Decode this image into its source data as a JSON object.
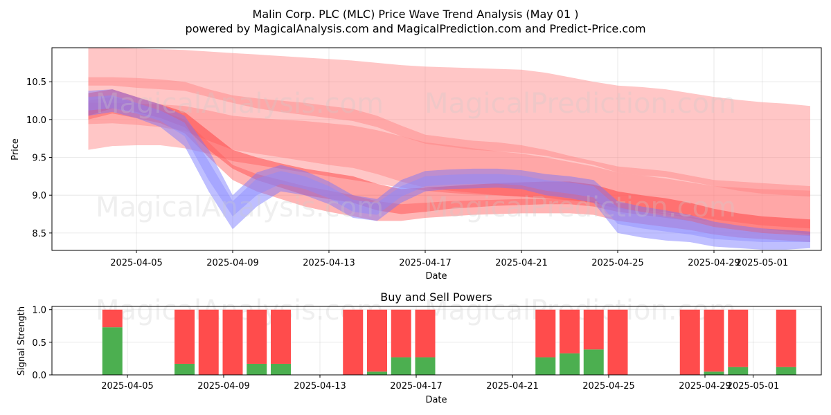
{
  "chart_data": [
    {
      "type": "area",
      "title": "Malin Corp. PLC (MLC) Price Wave Trend Analysis (May 01 )",
      "subtitle": "powered by MagicalAnalysis.com and MagicalPrediction.com and Predict-Price.com",
      "xlabel": "Date",
      "ylabel": "Price",
      "x_tick_labels": [
        "2025-04-05",
        "2025-04-09",
        "2025-04-13",
        "2025-04-17",
        "2025-04-21",
        "2025-04-25",
        "2025-04-29",
        "2025-05-01"
      ],
      "y_ticks": [
        8.5,
        9.0,
        9.5,
        10.0,
        10.5
      ],
      "ylim": [
        8.27,
        10.95
      ],
      "x_dates": [
        "2025-04-03",
        "2025-04-04",
        "2025-04-05",
        "2025-04-06",
        "2025-04-07",
        "2025-04-08",
        "2025-04-09",
        "2025-04-10",
        "2025-04-11",
        "2025-04-12",
        "2025-04-13",
        "2025-04-14",
        "2025-04-15",
        "2025-04-16",
        "2025-04-17",
        "2025-04-18",
        "2025-04-19",
        "2025-04-20",
        "2025-04-21",
        "2025-04-22",
        "2025-04-23",
        "2025-04-24",
        "2025-04-25",
        "2025-04-26",
        "2025-04-27",
        "2025-04-28",
        "2025-04-29",
        "2025-04-30",
        "2025-05-01",
        "2025-05-02",
        "2025-05-03"
      ],
      "grid": true,
      "series": [
        {
          "color": "#ff8080",
          "lower": [
            10.45,
            10.45,
            10.42,
            10.4,
            10.38,
            10.3,
            10.22,
            10.15,
            10.1,
            10.06,
            10.02,
            9.98,
            9.9,
            9.78,
            9.68,
            9.64,
            9.6,
            9.58,
            9.56,
            9.52,
            9.46,
            9.4,
            9.3,
            9.26,
            9.24,
            9.18,
            9.12,
            9.06,
            9.02,
            9.0,
            8.98
          ],
          "upper": [
            10.95,
            10.95,
            10.94,
            10.93,
            10.92,
            10.9,
            10.88,
            10.86,
            10.84,
            10.82,
            10.8,
            10.78,
            10.75,
            10.72,
            10.7,
            10.69,
            10.68,
            10.67,
            10.66,
            10.62,
            10.56,
            10.5,
            10.45,
            10.43,
            10.4,
            10.35,
            10.3,
            10.26,
            10.23,
            10.21,
            10.18
          ]
        },
        {
          "color": "#ff8080",
          "lower": [
            9.6,
            9.65,
            9.66,
            9.66,
            9.62,
            9.55,
            9.45,
            9.4,
            9.35,
            9.3,
            9.25,
            9.2,
            9.15,
            9.1,
            9.06,
            9.03,
            9.01,
            9.0,
            8.98,
            8.96,
            8.94,
            8.9,
            8.84,
            8.8,
            8.77,
            8.73,
            8.68,
            8.64,
            8.6,
            8.58,
            8.56
          ],
          "upper": [
            10.56,
            10.56,
            10.55,
            10.53,
            10.5,
            10.4,
            10.32,
            10.28,
            10.25,
            10.22,
            10.18,
            10.14,
            10.05,
            9.92,
            9.8,
            9.76,
            9.72,
            9.7,
            9.66,
            9.6,
            9.52,
            9.45,
            9.38,
            9.35,
            9.32,
            9.26,
            9.2,
            9.18,
            9.16,
            9.14,
            9.12
          ]
        },
        {
          "color": "#ff8080",
          "lower": [
            9.94,
            9.95,
            9.93,
            9.9,
            9.85,
            9.72,
            9.6,
            9.55,
            9.5,
            9.45,
            9.4,
            9.36,
            9.28,
            9.18,
            9.1,
            9.06,
            9.03,
            9.0,
            8.98,
            8.96,
            8.93,
            8.9,
            8.82,
            8.78,
            8.75,
            8.7,
            8.64,
            8.6,
            8.56,
            8.52,
            8.48
          ],
          "upper": [
            10.22,
            10.22,
            10.21,
            10.2,
            10.18,
            10.12,
            10.05,
            10.02,
            10.0,
            9.98,
            9.95,
            9.92,
            9.86,
            9.78,
            9.7,
            9.66,
            9.62,
            9.58,
            9.55,
            9.5,
            9.44,
            9.38,
            9.3,
            9.26,
            9.22,
            9.17,
            9.12,
            9.1,
            9.08,
            9.07,
            9.06
          ]
        },
        {
          "color": "#ff3030",
          "lower": [
            10.05,
            10.15,
            10.1,
            10.02,
            9.9,
            9.6,
            9.35,
            9.2,
            9.1,
            9.0,
            8.95,
            8.9,
            8.8,
            8.75,
            8.78,
            8.82,
            8.84,
            8.86,
            8.87,
            8.88,
            8.88,
            8.85,
            8.78,
            8.74,
            8.7,
            8.66,
            8.58,
            8.54,
            8.5,
            8.48,
            8.46
          ],
          "upper": [
            10.35,
            10.4,
            10.3,
            10.2,
            10.1,
            9.85,
            9.6,
            9.5,
            9.42,
            9.35,
            9.3,
            9.25,
            9.15,
            9.08,
            9.1,
            9.12,
            9.14,
            9.16,
            9.17,
            9.18,
            9.18,
            9.14,
            9.05,
            9.0,
            8.96,
            8.9,
            8.82,
            8.76,
            8.72,
            8.7,
            8.68
          ]
        },
        {
          "color": "#ff5a5a",
          "lower": [
            10.0,
            10.08,
            10.02,
            9.95,
            9.82,
            9.5,
            9.2,
            9.05,
            8.95,
            8.85,
            8.78,
            8.72,
            8.66,
            8.66,
            8.7,
            8.72,
            8.74,
            8.75,
            8.76,
            8.76,
            8.76,
            8.74,
            8.66,
            8.62,
            8.58,
            8.54,
            8.48,
            8.44,
            8.42,
            8.4,
            8.38
          ],
          "upper": [
            10.25,
            10.3,
            10.22,
            10.12,
            10.0,
            9.7,
            9.4,
            9.28,
            9.2,
            9.12,
            9.06,
            9.0,
            8.92,
            8.88,
            8.9,
            8.92,
            8.93,
            8.94,
            8.95,
            8.95,
            8.95,
            8.92,
            8.84,
            8.8,
            8.76,
            8.72,
            8.64,
            8.6,
            8.56,
            8.54,
            8.52
          ]
        },
        {
          "color": "#7070ff",
          "lower": [
            10.05,
            10.1,
            10.02,
            9.9,
            9.65,
            9.05,
            8.55,
            8.85,
            9.05,
            9.0,
            8.88,
            8.7,
            8.66,
            8.9,
            9.05,
            9.08,
            9.09,
            9.1,
            9.08,
            9.0,
            8.96,
            8.9,
            8.5,
            8.44,
            8.4,
            8.38,
            8.32,
            8.3,
            8.28,
            8.28,
            8.3
          ],
          "upper": [
            10.38,
            10.4,
            10.3,
            10.2,
            10.05,
            9.6,
            9.0,
            9.3,
            9.4,
            9.32,
            9.18,
            9.0,
            8.95,
            9.2,
            9.32,
            9.34,
            9.35,
            9.35,
            9.33,
            9.28,
            9.25,
            9.2,
            8.92,
            8.85,
            8.8,
            8.74,
            8.65,
            8.6,
            8.56,
            8.54,
            8.52
          ]
        },
        {
          "color": "#8a8aff",
          "lower": [
            10.12,
            10.15,
            10.08,
            9.98,
            9.78,
            9.2,
            8.72,
            9.0,
            9.15,
            9.08,
            8.96,
            8.78,
            8.74,
            8.98,
            9.12,
            9.14,
            9.15,
            9.15,
            9.13,
            9.06,
            9.02,
            8.97,
            8.62,
            8.56,
            8.52,
            8.48,
            8.42,
            8.4,
            8.38,
            8.38,
            8.38
          ],
          "upper": [
            10.3,
            10.32,
            10.22,
            10.12,
            9.96,
            9.45,
            8.92,
            9.22,
            9.32,
            9.25,
            9.12,
            8.94,
            8.9,
            9.12,
            9.25,
            9.27,
            9.28,
            9.28,
            9.26,
            9.2,
            9.17,
            9.12,
            8.84,
            8.78,
            8.72,
            8.66,
            8.58,
            8.54,
            8.5,
            8.48,
            8.47
          ]
        }
      ],
      "watermarks": [
        "MagicalAnalysis.com",
        "MagicalPrediction.com",
        "MagicalAnalysis.com",
        "MagicalPrediction.com"
      ]
    },
    {
      "type": "bar",
      "title": "Buy and Sell Powers",
      "xlabel": "Date",
      "ylabel": "Signal Strength",
      "x_tick_labels": [
        "2025-04-05",
        "2025-04-09",
        "2025-04-13",
        "2025-04-17",
        "2025-04-21",
        "2025-04-25",
        "2025-04-29",
        "2025-05-01"
      ],
      "y_ticks": [
        0.0,
        0.5,
        1.0
      ],
      "ylim": [
        0,
        1.05
      ],
      "grid": true,
      "buy_color": "#4caf50",
      "sell_color": "#ff4c4c",
      "bars": [
        {
          "date": "2025-04-04",
          "buy": 0.73,
          "sell": 0.27
        },
        {
          "date": "2025-04-07",
          "buy": 0.17,
          "sell": 0.83
        },
        {
          "date": "2025-04-08",
          "buy": 0.0,
          "sell": 1.0
        },
        {
          "date": "2025-04-09",
          "buy": 0.0,
          "sell": 1.0
        },
        {
          "date": "2025-04-10",
          "buy": 0.17,
          "sell": 0.83
        },
        {
          "date": "2025-04-11",
          "buy": 0.17,
          "sell": 0.83
        },
        {
          "date": "2025-04-14",
          "buy": 0.0,
          "sell": 1.0
        },
        {
          "date": "2025-04-15",
          "buy": 0.05,
          "sell": 0.95
        },
        {
          "date": "2025-04-16",
          "buy": 0.27,
          "sell": 0.73
        },
        {
          "date": "2025-04-17",
          "buy": 0.27,
          "sell": 0.73
        },
        {
          "date": "2025-04-22",
          "buy": 0.27,
          "sell": 0.73
        },
        {
          "date": "2025-04-23",
          "buy": 0.33,
          "sell": 0.67
        },
        {
          "date": "2025-04-24",
          "buy": 0.39,
          "sell": 0.61
        },
        {
          "date": "2025-04-25",
          "buy": 0.0,
          "sell": 1.0
        },
        {
          "date": "2025-04-28",
          "buy": 0.0,
          "sell": 1.0
        },
        {
          "date": "2025-04-29",
          "buy": 0.05,
          "sell": 0.95
        },
        {
          "date": "2025-04-30",
          "buy": 0.12,
          "sell": 0.88
        },
        {
          "date": "2025-05-02",
          "buy": 0.12,
          "sell": 0.88
        }
      ],
      "watermarks": [
        "MagicalAnalysis.com",
        "MagicalPrediction.com"
      ]
    }
  ]
}
